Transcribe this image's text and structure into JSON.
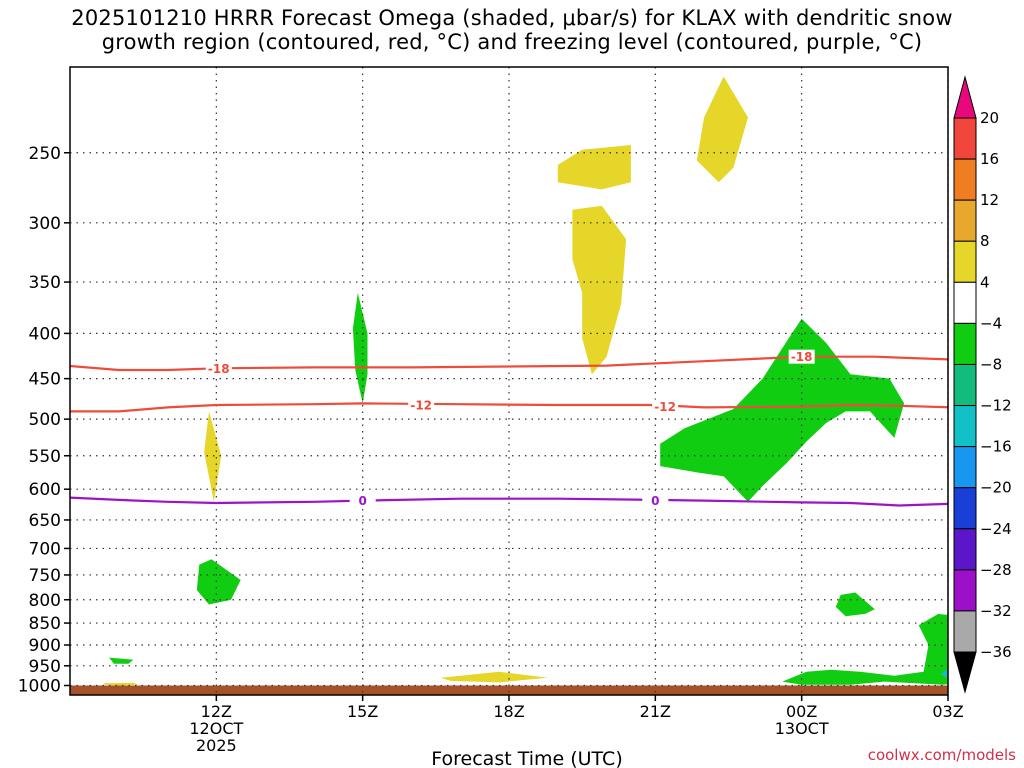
{
  "title_line1": "2025101210 HRRR Forecast Omega (shaded, μbar/s) for KLAX with dendritic snow",
  "title_line2": "growth region (contoured, red, °C) and freezing level (contoured, purple, °C)",
  "credit": "coolwx.com/models",
  "chart_data": {
    "type": "heatmap",
    "title": "2025101210 HRRR Forecast Omega (shaded, μbar/s) for KLAX with dendritic snow growth region (contoured, red, °C) and freezing level (contoured, purple, °C)",
    "xlabel": "Forecast Time (UTC)",
    "ylabel": "",
    "x_unit": "hours from 2025-10-12 09Z",
    "xlim": [
      0.0,
      18.0
    ],
    "ylim": [
      1025,
      200
    ],
    "y_scale": "log (pressure, hPa)",
    "grid": true,
    "y_ticks": [
      250,
      300,
      350,
      400,
      450,
      500,
      550,
      600,
      650,
      700,
      750,
      800,
      850,
      900,
      950,
      1000
    ],
    "x_ticks": [
      {
        "hour": 3,
        "label": "12Z",
        "sub1": "12OCT",
        "sub2": "2025"
      },
      {
        "hour": 6,
        "label": "15Z",
        "sub1": "",
        "sub2": ""
      },
      {
        "hour": 9,
        "label": "18Z",
        "sub1": "",
        "sub2": ""
      },
      {
        "hour": 12,
        "label": "21Z",
        "sub1": "",
        "sub2": ""
      },
      {
        "hour": 15,
        "label": "00Z",
        "sub1": "13OCT",
        "sub2": ""
      },
      {
        "hour": 18,
        "label": "03Z",
        "sub1": "",
        "sub2": ""
      }
    ],
    "colorbar": {
      "ticks": [
        "20",
        "16",
        "12",
        "8",
        "4",
        "−4",
        "−8",
        "−12",
        "−16",
        "−20",
        "−24",
        "−28",
        "−32",
        "−36"
      ],
      "bins": [
        {
          "color": "#e8087c"
        },
        {
          "color": "#f0463c"
        },
        {
          "color": "#ef7d22"
        },
        {
          "color": "#e8a82e"
        },
        {
          "color": "#e6d629"
        },
        {
          "color": "#ffffff"
        },
        {
          "color": "#11cd11"
        },
        {
          "color": "#12bd7b"
        },
        {
          "color": "#12c0c8"
        },
        {
          "color": "#1897f0"
        },
        {
          "color": "#1a3fd8"
        },
        {
          "color": "#5b16c9"
        },
        {
          "color": "#9b10c8"
        },
        {
          "color": "#a9a9a9"
        },
        {
          "color": "#000000"
        }
      ]
    },
    "omega_regions": [
      {
        "color": "#e6d629",
        "points": [
          [
            2.85,
            490
          ],
          [
            3.1,
            550
          ],
          [
            2.95,
            620
          ],
          [
            2.75,
            545
          ]
        ]
      },
      {
        "color": "#e6d629",
        "points": [
          [
            10.0,
            258
          ],
          [
            10.5,
            248
          ],
          [
            11.5,
            245
          ],
          [
            11.5,
            270
          ],
          [
            10.9,
            275
          ],
          [
            10.0,
            270
          ]
        ]
      },
      {
        "color": "#e6d629",
        "points": [
          [
            10.3,
            290
          ],
          [
            10.9,
            287
          ],
          [
            11.4,
            313
          ],
          [
            11.3,
            370
          ],
          [
            11.0,
            425
          ],
          [
            10.7,
            445
          ],
          [
            10.5,
            405
          ],
          [
            10.5,
            360
          ],
          [
            10.3,
            330
          ]
        ]
      },
      {
        "color": "#e6d629",
        "points": [
          [
            13.0,
            228
          ],
          [
            13.4,
            205
          ],
          [
            13.9,
            228
          ],
          [
            13.6,
            260
          ],
          [
            13.3,
            270
          ],
          [
            12.85,
            255
          ]
        ]
      },
      {
        "color": "#e6d629",
        "points": [
          [
            7.6,
            980
          ],
          [
            8.8,
            965
          ],
          [
            9.8,
            980
          ],
          [
            8.8,
            992
          ],
          [
            7.8,
            988
          ]
        ]
      },
      {
        "color": "#e6d629",
        "points": [
          [
            0.7,
            994
          ],
          [
            1.3,
            993
          ],
          [
            1.4,
            998
          ],
          [
            1.0,
            1000
          ],
          [
            0.7,
            998
          ]
        ]
      },
      {
        "color": "#11cd11",
        "points": [
          [
            5.9,
            360
          ],
          [
            6.1,
            400
          ],
          [
            6.1,
            445
          ],
          [
            6.0,
            480
          ],
          [
            5.85,
            440
          ],
          [
            5.8,
            395
          ]
        ]
      },
      {
        "color": "#11cd11",
        "points": [
          [
            2.65,
            730
          ],
          [
            2.9,
            720
          ],
          [
            3.5,
            760
          ],
          [
            3.3,
            800
          ],
          [
            2.85,
            810
          ],
          [
            2.6,
            780
          ]
        ]
      },
      {
        "color": "#11cd11",
        "points": [
          [
            0.8,
            930
          ],
          [
            1.3,
            935
          ],
          [
            1.2,
            945
          ],
          [
            0.9,
            945
          ]
        ]
      },
      {
        "color": "#11cd11",
        "points": [
          [
            12.1,
            533
          ],
          [
            12.6,
            512
          ],
          [
            13.6,
            487
          ],
          [
            14.2,
            450
          ],
          [
            14.8,
            400
          ],
          [
            15.0,
            385
          ],
          [
            15.5,
            410
          ],
          [
            16.0,
            445
          ],
          [
            16.8,
            450
          ],
          [
            17.1,
            480
          ],
          [
            16.9,
            525
          ],
          [
            16.4,
            490
          ],
          [
            15.9,
            490
          ],
          [
            15.5,
            505
          ],
          [
            15.1,
            530
          ],
          [
            14.7,
            560
          ],
          [
            14.2,
            595
          ],
          [
            13.9,
            620
          ],
          [
            13.4,
            580
          ],
          [
            12.9,
            575
          ],
          [
            12.1,
            565
          ]
        ]
      },
      {
        "color": "#11cd11",
        "points": [
          [
            15.8,
            790
          ],
          [
            16.1,
            785
          ],
          [
            16.5,
            820
          ],
          [
            16.3,
            830
          ],
          [
            15.9,
            835
          ],
          [
            15.7,
            815
          ]
        ]
      },
      {
        "color": "#11cd11",
        "points": [
          [
            14.6,
            990
          ],
          [
            15.1,
            965
          ],
          [
            15.6,
            960
          ],
          [
            16.2,
            965
          ],
          [
            16.9,
            975
          ],
          [
            17.5,
            965
          ],
          [
            17.6,
            900
          ],
          [
            17.4,
            855
          ],
          [
            17.8,
            830
          ],
          [
            18.2,
            835
          ],
          [
            18.5,
            880
          ],
          [
            18.8,
            950
          ],
          [
            18.9,
            975
          ],
          [
            18.5,
            990
          ],
          [
            17.9,
            998
          ],
          [
            16.7,
            990
          ],
          [
            16.0,
            998
          ],
          [
            15.0,
            998
          ]
        ]
      }
    ],
    "special_points": [
      {
        "color": "#12c0c8",
        "hour": 18.0,
        "p": 970,
        "value_band": "-8 to -12"
      }
    ],
    "contours": [
      {
        "name": "dendritic snow growth",
        "value": "-18",
        "color": "#ef4b3b",
        "points": [
          [
            -0.1,
            435
          ],
          [
            1,
            440
          ],
          [
            2,
            440
          ],
          [
            3,
            438
          ],
          [
            5,
            437
          ],
          [
            7,
            437
          ],
          [
            9,
            436
          ],
          [
            11,
            435
          ],
          [
            13,
            430
          ],
          [
            15,
            425
          ],
          [
            16.5,
            425
          ],
          [
            18,
            428
          ],
          [
            18.1,
            430
          ]
        ],
        "labels": [
          {
            "hour": 3.05,
            "p": 438
          },
          {
            "hour": 15.0,
            "p": 425
          }
        ]
      },
      {
        "name": "dendritic snow growth",
        "value": "-12",
        "color": "#ef4b3b",
        "points": [
          [
            -0.1,
            490
          ],
          [
            1,
            490
          ],
          [
            2,
            485
          ],
          [
            3,
            482
          ],
          [
            5,
            481
          ],
          [
            6,
            480
          ],
          [
            8,
            481
          ],
          [
            10,
            482
          ],
          [
            12,
            482
          ],
          [
            13,
            485
          ],
          [
            15,
            484
          ],
          [
            16,
            482
          ],
          [
            17,
            483
          ],
          [
            18.1,
            485
          ]
        ],
        "labels": [
          {
            "hour": 7.2,
            "p": 482
          },
          {
            "hour": 12.2,
            "p": 484
          }
        ]
      },
      {
        "name": "freezing level",
        "value": "0",
        "color": "#9d14c8",
        "points": [
          [
            -0.1,
            613
          ],
          [
            1,
            617
          ],
          [
            2,
            620
          ],
          [
            3,
            622
          ],
          [
            5,
            620
          ],
          [
            6,
            618
          ],
          [
            8,
            615
          ],
          [
            10,
            615
          ],
          [
            12,
            617
          ],
          [
            13,
            618
          ],
          [
            15,
            621
          ],
          [
            16,
            622
          ],
          [
            17,
            626
          ],
          [
            18.1,
            623
          ]
        ],
        "labels": [
          {
            "hour": 6.0,
            "p": 618
          },
          {
            "hour": 12.0,
            "p": 618
          }
        ]
      }
    ],
    "ground": {
      "color": "#a5522b",
      "p_top": 1000
    }
  }
}
